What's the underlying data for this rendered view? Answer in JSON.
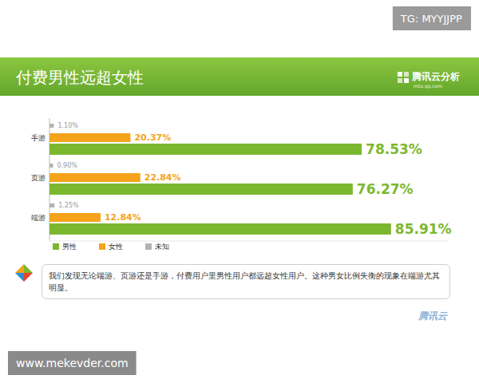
{
  "chart_data": {
    "type": "bar",
    "orientation": "horizontal",
    "title": "付费男性远超女性",
    "categories": [
      "手游",
      "页游",
      "端游"
    ],
    "series": [
      {
        "name": "男性",
        "color": "#7cb82f",
        "values": [
          78.53,
          76.27,
          85.91
        ],
        "value_labels": [
          "78.53%",
          "76.27%",
          "85.91%"
        ]
      },
      {
        "name": "女性",
        "color": "#f5a31a",
        "values": [
          20.37,
          22.84,
          12.84
        ],
        "value_labels": [
          "20.37%",
          "22.84%",
          "12.84%"
        ]
      },
      {
        "name": "未知",
        "color": "#b3b3b3",
        "values": [
          1.1,
          0.9,
          1.25
        ],
        "value_labels": [
          "1.10%",
          "0.90%",
          "1.25%"
        ]
      }
    ],
    "xlim": [
      0,
      100
    ],
    "tick_labels": false,
    "data_labels": true,
    "grid": false,
    "legend": "bottom",
    "annotation": "我们发现无论端游、页游还是手游，付费用户里男性用户都远超女性用户。这种男女比例失衡的现象在端游尤其明显。"
  },
  "header": {
    "logo": "腾讯云分析",
    "logo_url": "mta.qq.com"
  },
  "footer_logo": "腾讯云",
  "watermarks": [
    "TG: MYYJJPP",
    "www.mekevder.com"
  ]
}
